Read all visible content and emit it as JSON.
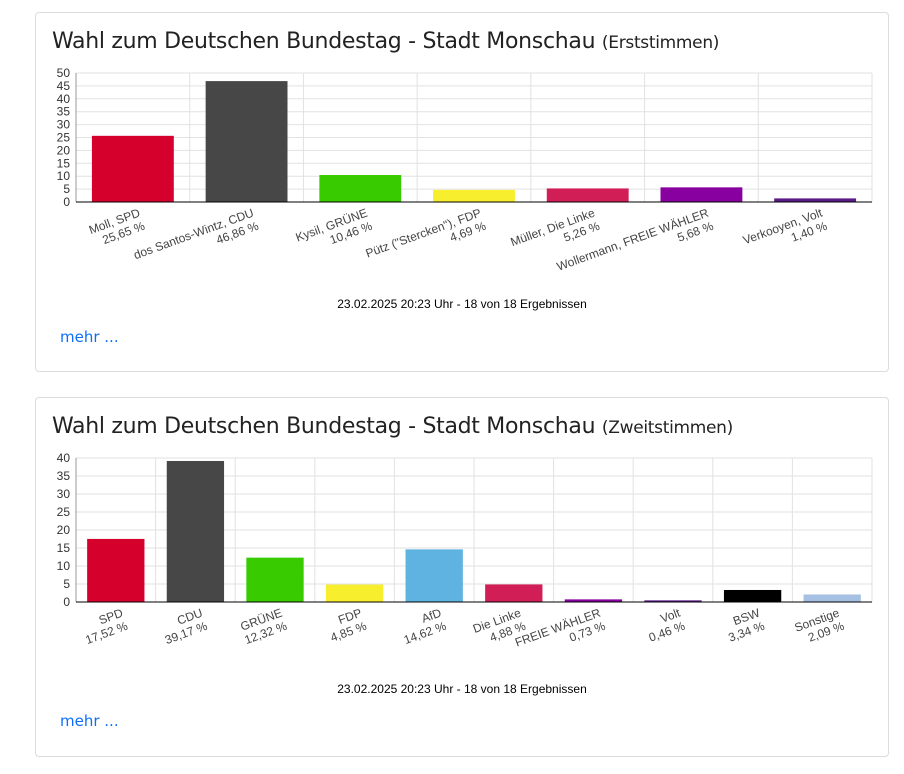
{
  "charts": [
    {
      "title": "Wahl zum Deutschen Bundestag - Stadt Monschau",
      "subtitle": "(Erststimmen)",
      "footnote": "23.02.2025 20:23 Uhr - 18 von 18 Ergebnissen",
      "more_label": "mehr ...",
      "chart_data": {
        "type": "bar",
        "title": "Wahl zum Deutschen Bundestag - Stadt Monschau (Erststimmen)",
        "categories": [
          "Moll, SPD",
          "dos Santos-Wintz, CDU",
          "Kysil, GRÜNE",
          "Pütz (\"Stercken\"), FDP",
          "Müller, Die Linke",
          "Wollermann, FREIE WÄHLER",
          "Verkooyen, Volt"
        ],
        "value_labels": [
          "25,65 %",
          "46,86 %",
          "10,46 %",
          "4,69 %",
          "5,26 %",
          "5,68 %",
          "1,40 %"
        ],
        "values": [
          25.65,
          46.86,
          10.46,
          4.69,
          5.26,
          5.68,
          1.4
        ],
        "colors": [
          "#d6002d",
          "#474747",
          "#38cc00",
          "#f7ef2e",
          "#d11e56",
          "#8800a0",
          "#5a1b87"
        ],
        "yticks": [
          0,
          5,
          10,
          15,
          20,
          25,
          30,
          35,
          40,
          45,
          50
        ],
        "ylim": [
          0,
          50
        ],
        "xlabel": "",
        "ylabel": "",
        "grid": true,
        "legend": "none"
      }
    },
    {
      "title": "Wahl zum Deutschen Bundestag - Stadt Monschau",
      "subtitle": "(Zweitstimmen)",
      "footnote": "23.02.2025 20:23 Uhr - 18 von 18 Ergebnissen",
      "more_label": "mehr ...",
      "chart_data": {
        "type": "bar",
        "title": "Wahl zum Deutschen Bundestag - Stadt Monschau (Zweitstimmen)",
        "categories": [
          "SPD",
          "CDU",
          "GRÜNE",
          "FDP",
          "AfD",
          "Die Linke",
          "FREIE WÄHLER",
          "Volt",
          "BSW",
          "Sonstige"
        ],
        "value_labels": [
          "17,52 %",
          "39,17 %",
          "12,32 %",
          "4,85 %",
          "14,62 %",
          "4,88 %",
          "0,73 %",
          "0,46 %",
          "3,34 %",
          "2,09 %"
        ],
        "values": [
          17.52,
          39.17,
          12.32,
          4.85,
          14.62,
          4.88,
          0.73,
          0.46,
          3.34,
          2.09
        ],
        "colors": [
          "#d6002d",
          "#474747",
          "#38cc00",
          "#f7ef2e",
          "#5fb3e1",
          "#d11e56",
          "#8800a0",
          "#5a1b87",
          "#000000",
          "#a5c0e3"
        ],
        "yticks": [
          0,
          5,
          10,
          15,
          20,
          25,
          30,
          35,
          40
        ],
        "ylim": [
          0,
          40
        ],
        "xlabel": "",
        "ylabel": "",
        "grid": true,
        "legend": "none"
      }
    }
  ]
}
